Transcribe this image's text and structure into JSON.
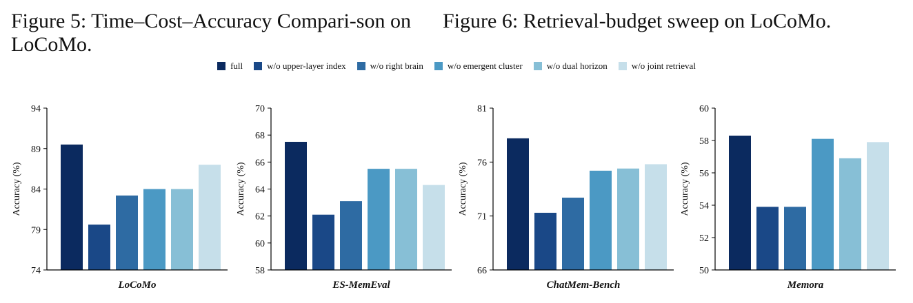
{
  "captions": {
    "fig5": "Figure 5: Time–Cost–Accuracy Compari-son on LoCoMo.",
    "fig6": "Figure 6: Retrieval-budget sweep on LoCoMo."
  },
  "colors": [
    "#0b2a5f",
    "#1a4887",
    "#2e6ba3",
    "#4b99c4",
    "#87bfd6",
    "#c6dfea"
  ],
  "legend": [
    "full",
    "w/o upper-layer index",
    "w/o right brain",
    "w/o emergent cluster",
    "w/o dual horizon",
    "w/o joint retrieval"
  ],
  "chart_data": [
    {
      "type": "bar",
      "title": "LoCoMo",
      "ylabel": "Accuracy (%)",
      "ylim": [
        74,
        94
      ],
      "yticks": [
        74,
        79,
        84,
        89,
        94
      ],
      "categories": [
        "full",
        "w/o upper-layer index",
        "w/o right brain",
        "w/o emergent cluster",
        "w/o dual horizon",
        "w/o joint retrieval"
      ],
      "values": [
        89.5,
        79.6,
        83.2,
        84.0,
        84.0,
        87.0
      ]
    },
    {
      "type": "bar",
      "title": "ES-MemEval",
      "ylabel": "Accuracy (%)",
      "ylim": [
        58,
        70
      ],
      "yticks": [
        58,
        60,
        62,
        64,
        66,
        68,
        70
      ],
      "categories": [
        "full",
        "w/o upper-layer index",
        "w/o right brain",
        "w/o emergent cluster",
        "w/o dual horizon",
        "w/o joint retrieval"
      ],
      "values": [
        67.5,
        62.1,
        63.1,
        65.5,
        65.5,
        64.3
      ]
    },
    {
      "type": "bar",
      "title": "ChatMem-Bench",
      "ylabel": "Accuracy (%)",
      "ylim": [
        66,
        81
      ],
      "yticks": [
        66,
        71,
        76,
        81
      ],
      "categories": [
        "full",
        "w/o upper-layer index",
        "w/o right brain",
        "w/o emergent cluster",
        "w/o dual horizon",
        "w/o joint retrieval"
      ],
      "values": [
        78.2,
        71.3,
        72.7,
        75.2,
        75.4,
        75.8
      ]
    },
    {
      "type": "bar",
      "title": "Memora",
      "ylabel": "Accuracy (%)",
      "ylim": [
        50,
        60
      ],
      "yticks": [
        50,
        52,
        54,
        56,
        58,
        60
      ],
      "categories": [
        "full",
        "w/o upper-layer index",
        "w/o right brain",
        "w/o emergent cluster",
        "w/o dual horizon",
        "w/o joint retrieval"
      ],
      "values": [
        58.3,
        53.9,
        53.9,
        58.1,
        56.9,
        57.9
      ]
    }
  ]
}
